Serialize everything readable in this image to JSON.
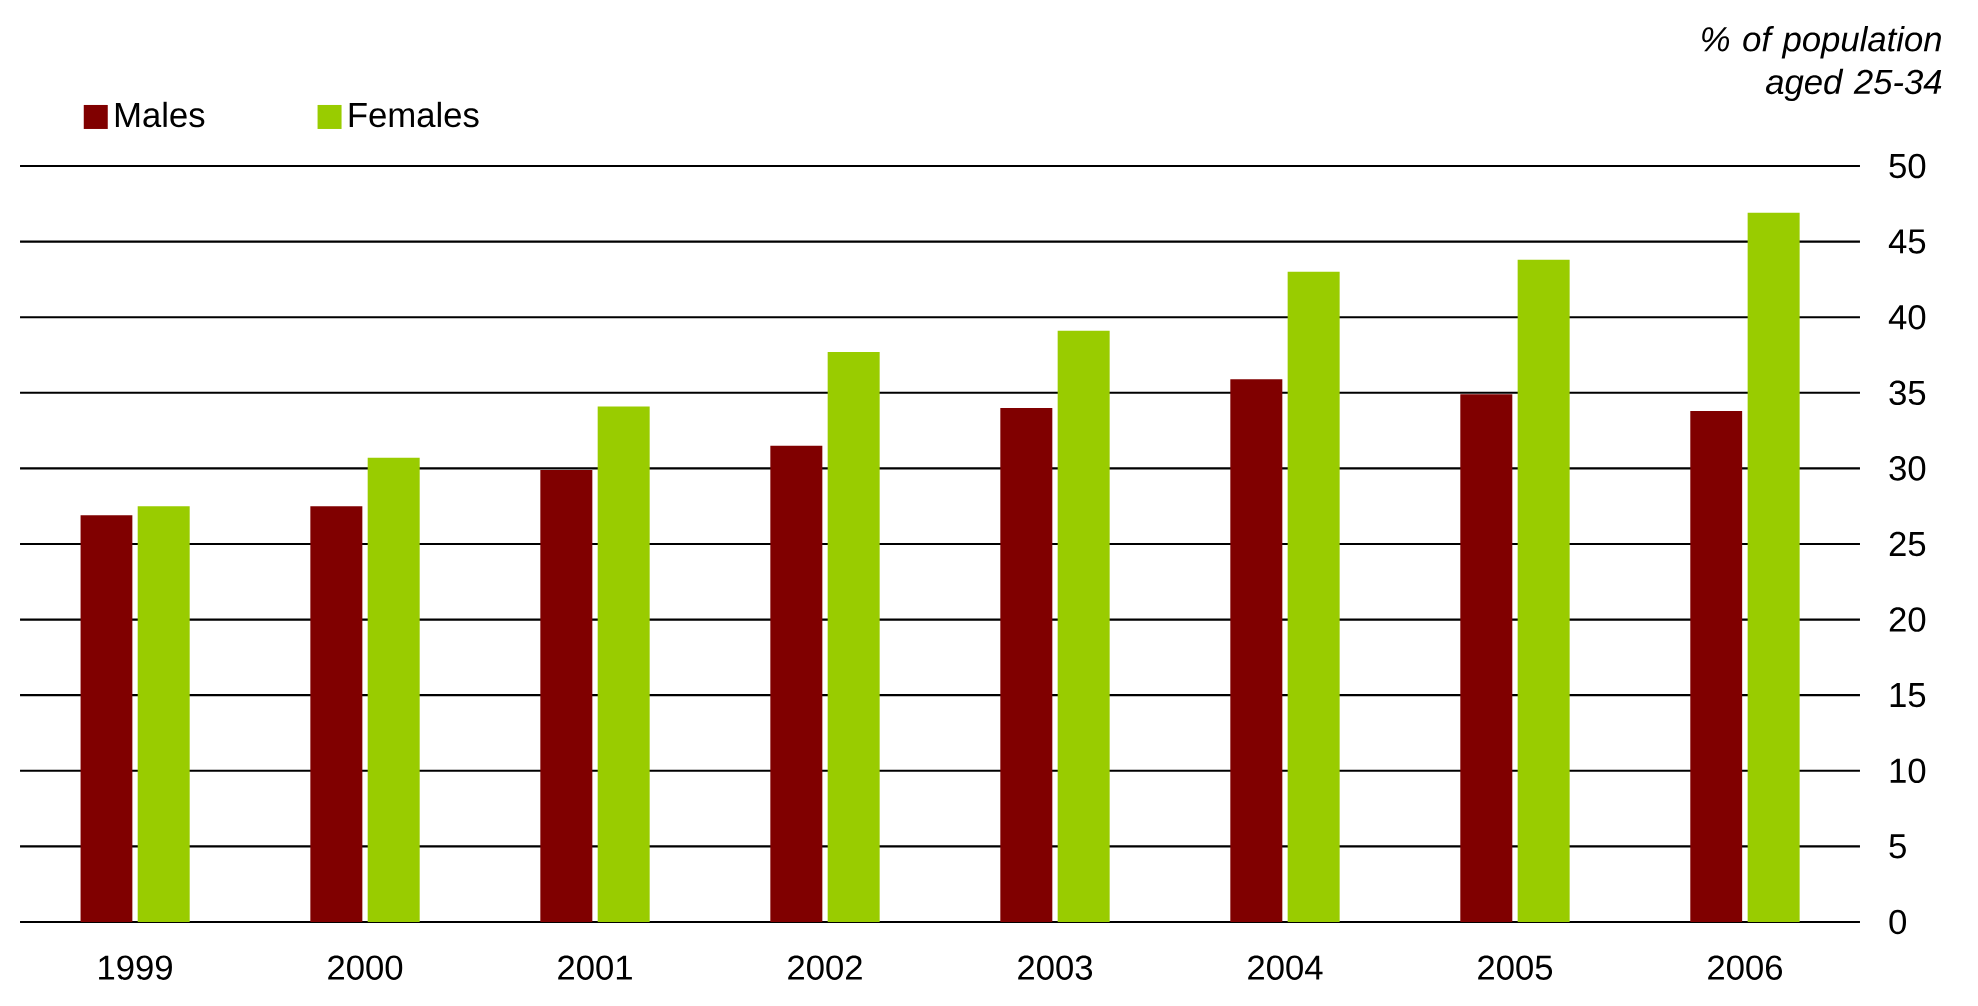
{
  "chart_data": {
    "type": "bar",
    "ylabel": "% of population aged 25-34",
    "categories": [
      "1999",
      "2000",
      "2001",
      "2002",
      "2003",
      "2004",
      "2005",
      "2006"
    ],
    "series": [
      {
        "name": "Males",
        "color": "#800000",
        "values": [
          26.9,
          27.5,
          29.9,
          31.5,
          34.0,
          35.9,
          34.9,
          33.8
        ]
      },
      {
        "name": "Females",
        "color": "#99cc00",
        "values": [
          27.5,
          30.7,
          34.1,
          37.7,
          39.1,
          43.0,
          43.8,
          46.9
        ]
      }
    ],
    "ylim": [
      0,
      50
    ],
    "yticks": [
      0,
      5,
      10,
      15,
      20,
      25,
      30,
      35,
      40,
      45,
      50
    ],
    "grid": "y",
    "legend": "top left"
  }
}
